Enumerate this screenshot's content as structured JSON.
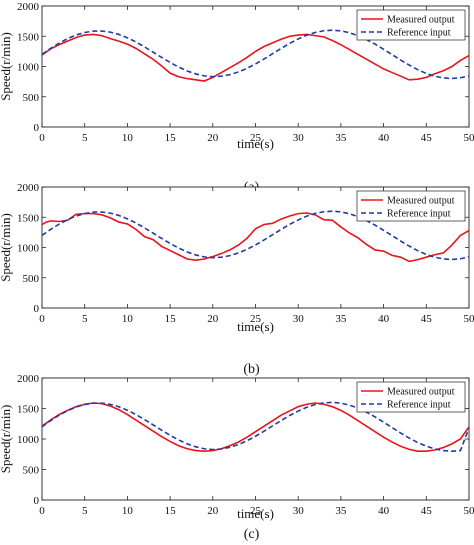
{
  "chart_data": [
    {
      "type": "line",
      "panel_label": "(a)",
      "xlabel": "time(s)",
      "ylabel": "Speed(r/min)",
      "xlim": [
        0,
        50
      ],
      "ylim": [
        0,
        2000
      ],
      "xticks": [
        0,
        5,
        10,
        15,
        20,
        25,
        30,
        35,
        40,
        45,
        50
      ],
      "yticks": [
        0,
        500,
        1000,
        1500,
        2000
      ],
      "legend": "top-right",
      "grid": false,
      "series": [
        {
          "name": "Measured output",
          "color": "#e8141c",
          "style": "solid",
          "x": [
            0,
            1,
            2,
            3,
            4,
            5,
            6,
            7,
            8,
            9,
            10,
            11,
            12,
            13,
            14,
            15,
            16,
            17,
            18,
            19,
            20,
            21,
            22,
            23,
            24,
            25,
            26,
            27,
            28,
            29,
            30,
            31,
            32,
            33,
            34,
            35,
            36,
            37,
            38,
            39,
            40,
            41,
            42,
            43,
            44,
            45,
            46,
            47,
            48,
            49,
            50
          ],
          "y": [
            1190,
            1290,
            1360,
            1420,
            1480,
            1520,
            1530,
            1510,
            1460,
            1420,
            1370,
            1300,
            1210,
            1120,
            1010,
            890,
            830,
            800,
            780,
            760,
            820,
            900,
            980,
            1060,
            1150,
            1250,
            1330,
            1390,
            1450,
            1500,
            1520,
            1530,
            1510,
            1490,
            1430,
            1360,
            1280,
            1200,
            1120,
            1040,
            960,
            900,
            840,
            780,
            790,
            820,
            880,
            930,
            1000,
            1100,
            1180
          ]
        },
        {
          "name": "Reference input",
          "color": "#1f3d9e",
          "style": "dashed",
          "x": [
            0,
            1,
            2,
            3,
            4,
            5,
            6,
            7,
            8,
            9,
            10,
            11,
            12,
            13,
            14,
            15,
            16,
            17,
            18,
            19,
            20,
            21,
            22,
            23,
            24,
            25,
            26,
            27,
            28,
            29,
            30,
            31,
            32,
            33,
            34,
            35,
            36,
            37,
            38,
            39,
            40,
            41,
            42,
            43,
            44,
            45,
            46,
            47,
            48,
            49,
            50
          ],
          "y": [
            1200,
            1298,
            1386,
            1461,
            1521,
            1562,
            1585,
            1586,
            1568,
            1530,
            1474,
            1405,
            1325,
            1238,
            1151,
            1067,
            991,
            926,
            877,
            845,
            832,
            840,
            866,
            910,
            969,
            1042,
            1124,
            1211,
            1299,
            1382,
            1456,
            1518,
            1563,
            1591,
            1600,
            1589,
            1558,
            1510,
            1446,
            1370,
            1285,
            1196,
            1107,
            1023,
            948,
            885,
            839,
            811,
            802,
            814,
            845
          ]
        }
      ]
    },
    {
      "type": "line",
      "panel_label": "(b)",
      "xlabel": "time(s)",
      "ylabel": "Speed(r/min)",
      "xlim": [
        0,
        50
      ],
      "ylim": [
        0,
        2000
      ],
      "xticks": [
        0,
        5,
        10,
        15,
        20,
        25,
        30,
        35,
        40,
        45,
        50
      ],
      "yticks": [
        0,
        500,
        1000,
        1500,
        2000
      ],
      "legend": "top-right",
      "grid": false,
      "series": [
        {
          "name": "Measured output",
          "color": "#e8141c",
          "style": "solid",
          "x": [
            0,
            0.5,
            1,
            2,
            3,
            4,
            5,
            6,
            7,
            8,
            9,
            10,
            11,
            12,
            13,
            14,
            15,
            16,
            17,
            18,
            19,
            20,
            21,
            22,
            23,
            24,
            25,
            26,
            27,
            28,
            29,
            30,
            31,
            32,
            33,
            34,
            35,
            36,
            37,
            38,
            39,
            40,
            41,
            42,
            43,
            44,
            45,
            46,
            47,
            48,
            49,
            50
          ],
          "y": [
            1380,
            1420,
            1440,
            1430,
            1450,
            1550,
            1560,
            1560,
            1540,
            1490,
            1420,
            1390,
            1300,
            1180,
            1130,
            1020,
            950,
            880,
            810,
            790,
            810,
            850,
            900,
            960,
            1040,
            1150,
            1310,
            1380,
            1400,
            1470,
            1520,
            1560,
            1570,
            1540,
            1460,
            1450,
            1340,
            1240,
            1160,
            1050,
            960,
            940,
            870,
            840,
            770,
            800,
            840,
            880,
            910,
            1040,
            1200,
            1280
          ]
        },
        {
          "name": "Reference input",
          "color": "#1f3d9e",
          "style": "dashed",
          "x": [
            0,
            1,
            2,
            3,
            4,
            5,
            6,
            7,
            8,
            9,
            10,
            11,
            12,
            13,
            14,
            15,
            16,
            17,
            18,
            19,
            20,
            21,
            22,
            23,
            24,
            25,
            26,
            27,
            28,
            29,
            30,
            31,
            32,
            33,
            34,
            35,
            36,
            37,
            38,
            39,
            40,
            41,
            42,
            43,
            44,
            45,
            46,
            47,
            48,
            49,
            50
          ],
          "y": [
            1200,
            1298,
            1386,
            1461,
            1521,
            1562,
            1585,
            1586,
            1568,
            1530,
            1474,
            1405,
            1325,
            1238,
            1151,
            1067,
            991,
            926,
            877,
            845,
            832,
            840,
            866,
            910,
            969,
            1042,
            1124,
            1211,
            1299,
            1382,
            1456,
            1518,
            1563,
            1591,
            1600,
            1589,
            1558,
            1510,
            1446,
            1370,
            1285,
            1196,
            1107,
            1023,
            948,
            885,
            839,
            811,
            802,
            814,
            845
          ]
        }
      ]
    },
    {
      "type": "line",
      "panel_label": "(c)",
      "xlabel": "time(s)",
      "ylabel": "Speed(r/min)",
      "xlim": [
        0,
        50
      ],
      "ylim": [
        0,
        2000
      ],
      "xticks": [
        0,
        5,
        10,
        15,
        20,
        25,
        30,
        35,
        40,
        45,
        50
      ],
      "yticks": [
        0,
        500,
        1000,
        1500,
        2000
      ],
      "legend": "top-right",
      "grid": false,
      "series": [
        {
          "name": "Measured output",
          "color": "#e8141c",
          "style": "solid",
          "x": [
            0,
            1,
            2,
            3,
            4,
            5,
            6,
            7,
            8,
            9,
            10,
            11,
            12,
            13,
            14,
            15,
            16,
            17,
            18,
            19,
            20,
            21,
            22,
            23,
            24,
            25,
            26,
            27,
            28,
            29,
            30,
            31,
            32,
            33,
            34,
            35,
            36,
            37,
            38,
            39,
            40,
            41,
            42,
            43,
            44,
            45,
            46,
            47,
            48,
            49,
            50
          ],
          "y": [
            1210,
            1310,
            1400,
            1470,
            1530,
            1570,
            1590,
            1580,
            1540,
            1480,
            1400,
            1310,
            1220,
            1130,
            1040,
            960,
            890,
            840,
            810,
            800,
            810,
            840,
            890,
            950,
            1030,
            1120,
            1210,
            1300,
            1390,
            1460,
            1530,
            1570,
            1590,
            1570,
            1530,
            1470,
            1390,
            1300,
            1210,
            1120,
            1030,
            950,
            880,
            830,
            800,
            800,
            820,
            860,
            920,
            1000,
            1200
          ]
        },
        {
          "name": "Reference input",
          "color": "#1f3d9e",
          "style": "dashed",
          "x": [
            0,
            1,
            2,
            3,
            4,
            5,
            6,
            7,
            8,
            9,
            10,
            11,
            12,
            13,
            14,
            15,
            16,
            17,
            18,
            19,
            20,
            21,
            22,
            23,
            24,
            25,
            26,
            27,
            28,
            29,
            30,
            31,
            32,
            33,
            34,
            35,
            36,
            37,
            38,
            39,
            40,
            41,
            42,
            43,
            44,
            45,
            46,
            47,
            48,
            49,
            50
          ],
          "y": [
            1200,
            1300,
            1390,
            1465,
            1525,
            1565,
            1588,
            1588,
            1568,
            1528,
            1472,
            1400,
            1320,
            1232,
            1145,
            1060,
            985,
            920,
            872,
            840,
            828,
            836,
            864,
            910,
            970,
            1045,
            1128,
            1215,
            1302,
            1385,
            1458,
            1520,
            1565,
            1592,
            1600,
            1588,
            1556,
            1506,
            1440,
            1362,
            1276,
            1186,
            1098,
            1015,
            942,
            882,
            838,
            810,
            800,
            810,
            1180
          ]
        }
      ]
    }
  ]
}
